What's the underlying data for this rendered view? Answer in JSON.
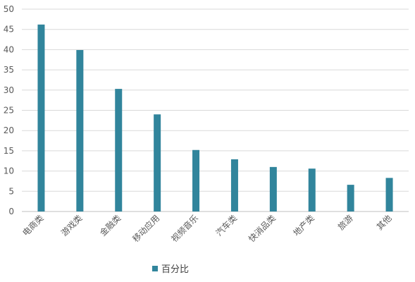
{
  "chart_data": {
    "type": "bar",
    "categories": [
      "电商类",
      "游戏类",
      "金融类",
      "移动应用",
      "视频音乐",
      "汽车类",
      "快消品类",
      "地产类",
      "旅游",
      "其他"
    ],
    "series": [
      {
        "name": "百分比",
        "values": [
          46.2,
          39.9,
          30.3,
          24.0,
          15.2,
          12.9,
          11.0,
          10.6,
          6.6,
          8.3
        ],
        "color": "#31859c"
      }
    ],
    "ylim": [
      0,
      50
    ],
    "yticks": [
      0,
      5,
      10,
      15,
      20,
      25,
      30,
      35,
      40,
      45,
      50
    ],
    "grid": true,
    "legend": "bottom",
    "title": "",
    "xlabel": "",
    "ylabel": ""
  }
}
